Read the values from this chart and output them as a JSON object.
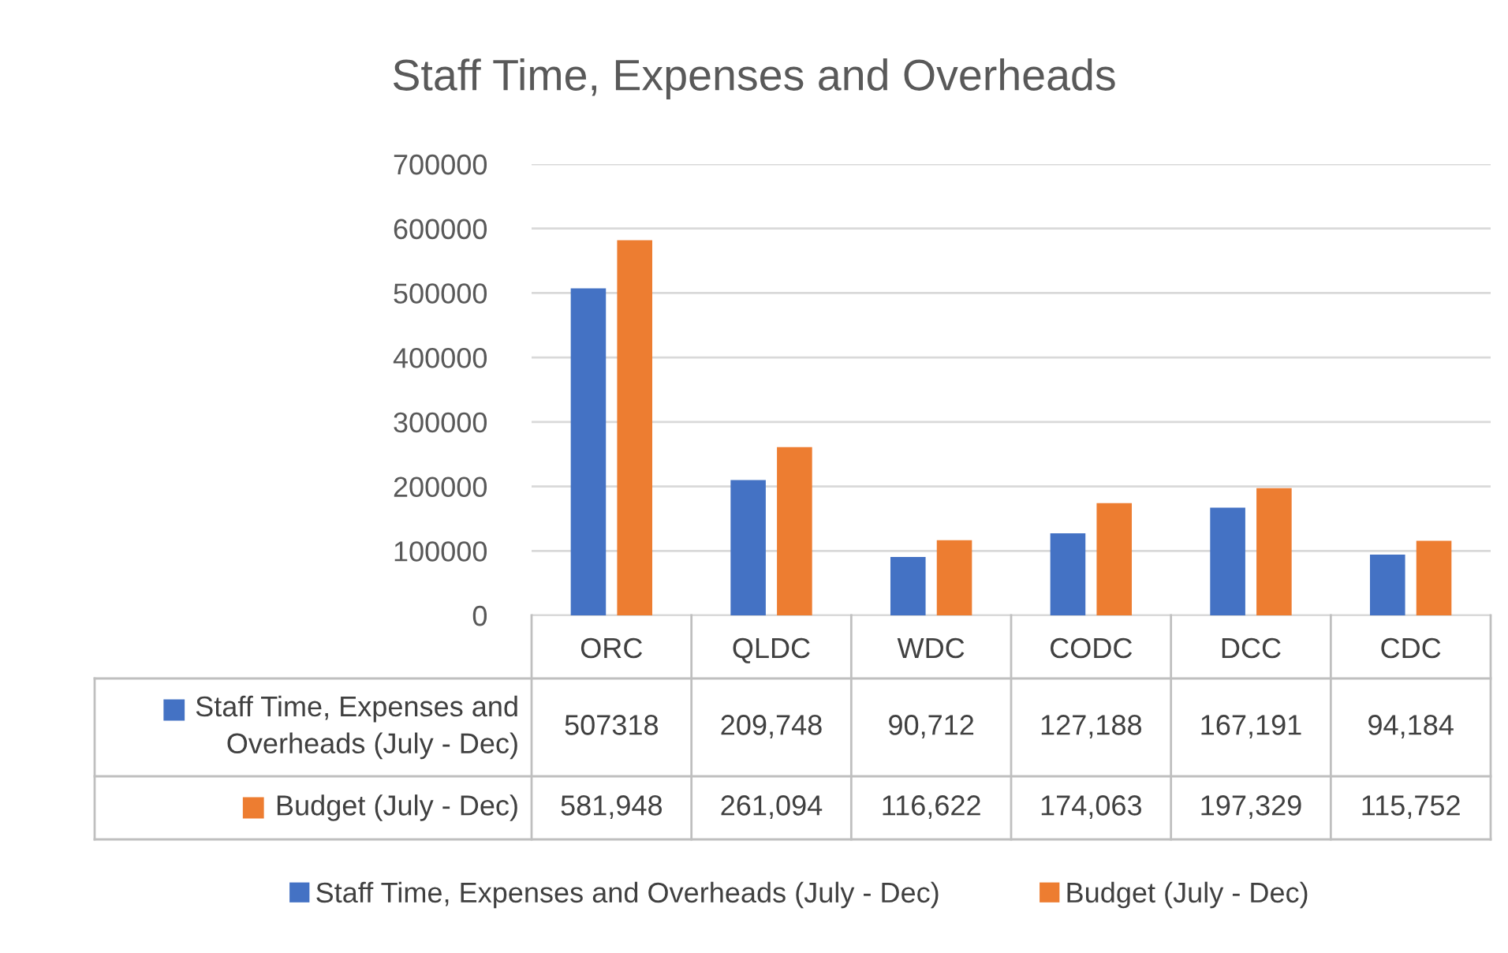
{
  "chart_data": {
    "type": "bar",
    "title": "Staff Time, Expenses and Overheads",
    "categories": [
      "ORC",
      "QLDC",
      "WDC",
      "CODC",
      "DCC",
      "CDC"
    ],
    "series": [
      {
        "name": "Staff Time, Expenses and Overheads (July - Dec)",
        "color": "#4472c4",
        "values": [
          507318,
          209748,
          90712,
          127188,
          167191,
          94184
        ],
        "value_labels": [
          "507318",
          "209,748",
          "90,712",
          "127,188",
          "167,191",
          "94,184"
        ]
      },
      {
        "name": "Budget (July - Dec)",
        "color": "#ed7d31",
        "values": [
          581948,
          261094,
          116622,
          174063,
          197329,
          115752
        ],
        "value_labels": [
          "581,948",
          "261,094",
          "116,622",
          "174,063",
          "197,329",
          "115,752"
        ]
      }
    ],
    "ylim": [
      0,
      700000
    ],
    "yticks": [
      0,
      100000,
      200000,
      300000,
      400000,
      500000,
      600000,
      700000
    ],
    "grid": "y",
    "legend": "bottom"
  }
}
